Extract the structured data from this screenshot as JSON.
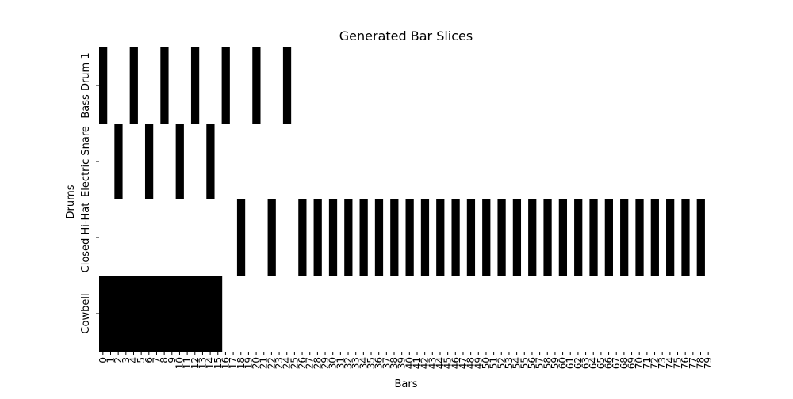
{
  "chart_data": {
    "type": "heatmap",
    "title": "Generated Bar Slices",
    "xlabel": "Bars",
    "ylabel": "Drums",
    "x_count": 80,
    "x_ticks": [
      "0",
      "1",
      "2",
      "3",
      "4",
      "5",
      "6",
      "7",
      "8",
      "9",
      "10",
      "11",
      "12",
      "13",
      "14",
      "15",
      "16",
      "17",
      "18",
      "19",
      "20",
      "21",
      "22",
      "23",
      "24",
      "25",
      "26",
      "27",
      "28",
      "29",
      "30",
      "31",
      "32",
      "33",
      "34",
      "35",
      "36",
      "37",
      "38",
      "39",
      "40",
      "41",
      "42",
      "43",
      "44",
      "45",
      "46",
      "47",
      "48",
      "49",
      "50",
      "51",
      "52",
      "53",
      "54",
      "55",
      "56",
      "57",
      "58",
      "59",
      "60",
      "61",
      "62",
      "63",
      "64",
      "65",
      "66",
      "67",
      "68",
      "69",
      "70",
      "71",
      "72",
      "73",
      "74",
      "75",
      "76",
      "77",
      "78",
      "79"
    ],
    "colors": {
      "on": "#000000",
      "off": "#ffffff"
    },
    "colorbar": false,
    "rows": [
      {
        "label": "Bass Drum 1",
        "active_columns": [
          0,
          4,
          8,
          12,
          16,
          20,
          24
        ]
      },
      {
        "label": "Electric Snare",
        "active_columns": [
          2,
          6,
          10,
          14
        ]
      },
      {
        "label": "Closed Hi-Hat",
        "active_columns": [
          18,
          22,
          26,
          28,
          30,
          32,
          34,
          36,
          38,
          40,
          42,
          44,
          46,
          48,
          50,
          52,
          54,
          56,
          58,
          60,
          62,
          64,
          66,
          68,
          70,
          72,
          74,
          76,
          78
        ]
      },
      {
        "label": "Cowbell",
        "active_columns": [
          0,
          1,
          2,
          3,
          4,
          5,
          6,
          7,
          8,
          9,
          10,
          11,
          12,
          13,
          14,
          15
        ]
      }
    ]
  }
}
